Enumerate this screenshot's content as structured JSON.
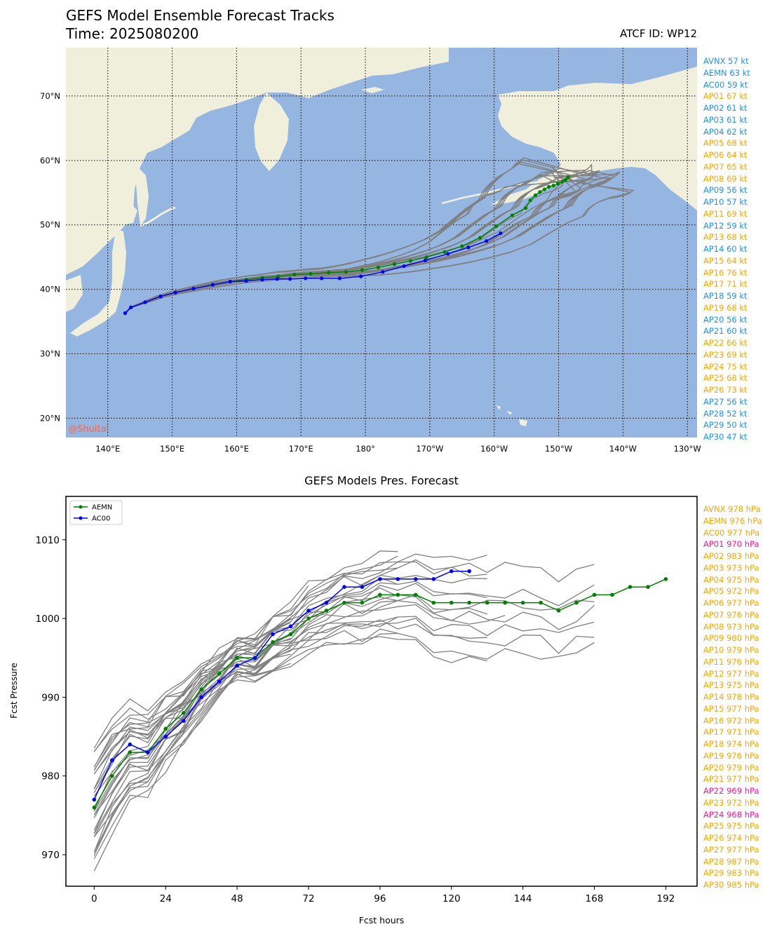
{
  "header": {
    "title": "GEFS Model Ensemble Forecast Tracks",
    "time": "Time: 2025080200",
    "atcf_id": "ATCF ID: WP12"
  },
  "watermark": "@Shuitai",
  "colors": {
    "ocean": "#96b6e2",
    "land": "#efefdb",
    "member_track": "#808080",
    "aemn": "#008000",
    "ac00": "#0000ff",
    "wind_blue": "#1e90ff",
    "wind_orange": "#ffa500",
    "pres_orange": "#ffa500",
    "pres_pink": "#ff1493",
    "watermark": "#ff6347"
  },
  "wind_legend": [
    {
      "text": "AVNX 57 kt",
      "color": "blue"
    },
    {
      "text": "AEMN 63 kt",
      "color": "blue"
    },
    {
      "text": "AC00 59 kt",
      "color": "blue"
    },
    {
      "text": "AP01 67 kt",
      "color": "orange"
    },
    {
      "text": "AP02 61 kt",
      "color": "blue"
    },
    {
      "text": "AP03 61 kt",
      "color": "blue"
    },
    {
      "text": "AP04 62 kt",
      "color": "blue"
    },
    {
      "text": "AP05 68 kt",
      "color": "orange"
    },
    {
      "text": "AP06 64 kt",
      "color": "orange"
    },
    {
      "text": "AP07 65 kt",
      "color": "orange"
    },
    {
      "text": "AP08 69 kt",
      "color": "orange"
    },
    {
      "text": "AP09 56 kt",
      "color": "blue"
    },
    {
      "text": "AP10 57 kt",
      "color": "blue"
    },
    {
      "text": "AP11 69 kt",
      "color": "orange"
    },
    {
      "text": "AP12 59 kt",
      "color": "blue"
    },
    {
      "text": "AP13 68 kt",
      "color": "orange"
    },
    {
      "text": "AP14 60 kt",
      "color": "blue"
    },
    {
      "text": "AP15 64 kt",
      "color": "orange"
    },
    {
      "text": "AP16 76 kt",
      "color": "orange"
    },
    {
      "text": "AP17 71 kt",
      "color": "orange"
    },
    {
      "text": "AP18 59 kt",
      "color": "blue"
    },
    {
      "text": "AP19 68 kt",
      "color": "orange"
    },
    {
      "text": "AP20 56 kt",
      "color": "blue"
    },
    {
      "text": "AP21 60 kt",
      "color": "blue"
    },
    {
      "text": "AP22 66 kt",
      "color": "orange"
    },
    {
      "text": "AP23 69 kt",
      "color": "orange"
    },
    {
      "text": "AP24 75 kt",
      "color": "orange"
    },
    {
      "text": "AP25 68 kt",
      "color": "orange"
    },
    {
      "text": "AP26 73 kt",
      "color": "orange"
    },
    {
      "text": "AP27 56 kt",
      "color": "blue"
    },
    {
      "text": "AP28 52 kt",
      "color": "blue"
    },
    {
      "text": "AP29 50 kt",
      "color": "blue"
    },
    {
      "text": "AP30 47 kt",
      "color": "blue"
    }
  ],
  "pres_legend": [
    {
      "text": "AVNX 978 hPa",
      "color": "orange"
    },
    {
      "text": "AEMN 976 hPa",
      "color": "orange"
    },
    {
      "text": "AC00 977 hPa",
      "color": "orange"
    },
    {
      "text": "AP01 970 hPa",
      "color": "pink"
    },
    {
      "text": "AP02 983 hPa",
      "color": "orange"
    },
    {
      "text": "AP03 973 hPa",
      "color": "orange"
    },
    {
      "text": "AP04 975 hPa",
      "color": "orange"
    },
    {
      "text": "AP05 972 hPa",
      "color": "orange"
    },
    {
      "text": "AP06 977 hPa",
      "color": "orange"
    },
    {
      "text": "AP07 976 hPa",
      "color": "orange"
    },
    {
      "text": "AP08 973 hPa",
      "color": "orange"
    },
    {
      "text": "AP09 980 hPa",
      "color": "orange"
    },
    {
      "text": "AP10 979 hPa",
      "color": "orange"
    },
    {
      "text": "AP11 976 hPa",
      "color": "orange"
    },
    {
      "text": "AP12 977 hPa",
      "color": "orange"
    },
    {
      "text": "AP13 975 hPa",
      "color": "orange"
    },
    {
      "text": "AP14 978 hPa",
      "color": "orange"
    },
    {
      "text": "AP15 977 hPa",
      "color": "orange"
    },
    {
      "text": "AP16 972 hPa",
      "color": "orange"
    },
    {
      "text": "AP17 971 hPa",
      "color": "orange"
    },
    {
      "text": "AP18 974 hPa",
      "color": "orange"
    },
    {
      "text": "AP19 976 hPa",
      "color": "orange"
    },
    {
      "text": "AP20 979 hPa",
      "color": "orange"
    },
    {
      "text": "AP21 977 hPa",
      "color": "orange"
    },
    {
      "text": "AP22 969 hPa",
      "color": "pink"
    },
    {
      "text": "AP23 972 hPa",
      "color": "orange"
    },
    {
      "text": "AP24 968 hPa",
      "color": "pink"
    },
    {
      "text": "AP25 975 hPa",
      "color": "orange"
    },
    {
      "text": "AP26 974 hPa",
      "color": "orange"
    },
    {
      "text": "AP27 977 hPa",
      "color": "orange"
    },
    {
      "text": "AP28 987 hPa",
      "color": "orange"
    },
    {
      "text": "AP29 983 hPa",
      "color": "orange"
    },
    {
      "text": "AP30 985 hPa",
      "color": "orange"
    }
  ],
  "chart_data": [
    {
      "type": "map",
      "title": "GEFS Model Ensemble Forecast Tracks",
      "lon_range": [
        133.5,
        231.5
      ],
      "lat_range": [
        17,
        77.5
      ],
      "grid": "dotted",
      "lon_ticks": [
        140,
        150,
        160,
        170,
        180,
        190,
        200,
        210,
        220,
        230
      ],
      "lon_tick_labels": [
        "140°E",
        "150°E",
        "160°E",
        "170°E",
        "180°",
        "170°W",
        "160°W",
        "150°W",
        "140°W",
        "130°W"
      ],
      "lat_ticks": [
        20,
        30,
        40,
        50,
        60,
        70
      ],
      "lat_tick_labels": [
        "20°N",
        "30°N",
        "40°N",
        "50°N",
        "60°N",
        "70°N"
      ],
      "series": [
        {
          "name": "AEMN",
          "points": [
            [
              142.7,
              36.3
            ],
            [
              143.6,
              37.2
            ],
            [
              145.8,
              38.0
            ],
            [
              148.2,
              38.9
            ],
            [
              150.5,
              39.5
            ],
            [
              153.3,
              40.1
            ],
            [
              156.3,
              40.7
            ],
            [
              159.0,
              41.2
            ],
            [
              161.5,
              41.5
            ],
            [
              164.0,
              41.8
            ],
            [
              166.5,
              42.0
            ],
            [
              169.0,
              42.3
            ],
            [
              171.5,
              42.4
            ],
            [
              174.3,
              42.6
            ],
            [
              177.0,
              42.7
            ],
            [
              179.5,
              43.0
            ],
            [
              182.0,
              43.4
            ],
            [
              184.5,
              43.9
            ],
            [
              187.0,
              44.4
            ],
            [
              189.5,
              45.0
            ],
            [
              192.3,
              45.8
            ],
            [
              195.0,
              46.7
            ],
            [
              197.8,
              48.0
            ],
            [
              200.3,
              49.8
            ],
            [
              202.8,
              51.5
            ],
            [
              204.9,
              52.6
            ],
            [
              205.6,
              53.8
            ],
            [
              206.4,
              54.6
            ],
            [
              207.1,
              55.1
            ],
            [
              207.8,
              55.5
            ],
            [
              208.5,
              55.9
            ],
            [
              209.2,
              56.1
            ],
            [
              209.9,
              56.4
            ],
            [
              210.6,
              56.7
            ],
            [
              211.1,
              57.0
            ],
            [
              211.5,
              57.4
            ]
          ]
        },
        {
          "name": "AC00",
          "points": [
            [
              142.7,
              36.3
            ],
            [
              143.6,
              37.2
            ],
            [
              145.8,
              38.0
            ],
            [
              148.2,
              38.9
            ],
            [
              150.5,
              39.5
            ],
            [
              153.3,
              40.1
            ],
            [
              156.3,
              40.7
            ],
            [
              159.0,
              41.2
            ],
            [
              161.5,
              41.3
            ],
            [
              164.0,
              41.5
            ],
            [
              166.3,
              41.6
            ],
            [
              168.3,
              41.6
            ],
            [
              170.7,
              41.7
            ],
            [
              173.2,
              41.7
            ],
            [
              176.0,
              41.7
            ],
            [
              179.3,
              42.0
            ],
            [
              182.7,
              42.7
            ],
            [
              186.0,
              43.6
            ],
            [
              189.3,
              44.5
            ],
            [
              192.8,
              45.5
            ],
            [
              196.0,
              46.5
            ],
            [
              198.8,
              47.5
            ],
            [
              201.0,
              48.7
            ]
          ]
        }
      ]
    },
    {
      "type": "line",
      "title": "GEFS Models Pres. Forecast",
      "xlabel": "Fcst hours",
      "ylabel": "Fcst Pressure",
      "xlim": [
        -9.5,
        202.5
      ],
      "ylim": [
        966,
        1015.5
      ],
      "xticks": [
        0,
        24,
        48,
        72,
        96,
        120,
        144,
        168,
        192
      ],
      "yticks": [
        970,
        980,
        990,
        1000,
        1010
      ],
      "legend": "top-left",
      "series": [
        {
          "name": "AEMN",
          "x": [
            0,
            6,
            12,
            18,
            24,
            30,
            36,
            42,
            48,
            54,
            60,
            66,
            72,
            78,
            84,
            90,
            96,
            102,
            108,
            114,
            120,
            126,
            132,
            138,
            144,
            150,
            156,
            162,
            168,
            174,
            180,
            186,
            192
          ],
          "y": [
            976,
            980,
            983,
            983,
            986,
            988,
            991,
            993,
            995,
            995,
            997,
            998,
            1000,
            1001,
            1002,
            1002,
            1003,
            1003,
            1003,
            1002,
            1002,
            1002,
            1002,
            1002,
            1002,
            1002,
            1001,
            1002,
            1003,
            1003,
            1004,
            1004,
            1005
          ]
        },
        {
          "name": "AC00",
          "x": [
            0,
            6,
            12,
            18,
            24,
            30,
            36,
            42,
            48,
            54,
            60,
            66,
            72,
            78,
            84,
            90,
            96,
            102,
            108,
            114,
            120,
            126
          ],
          "y": [
            977,
            982,
            984,
            983,
            985,
            987,
            990,
            992,
            994,
            995,
            998,
            999,
            1001,
            1002,
            1004,
            1004,
            1005,
            1005,
            1005,
            1005,
            1006,
            1006
          ]
        }
      ]
    }
  ]
}
